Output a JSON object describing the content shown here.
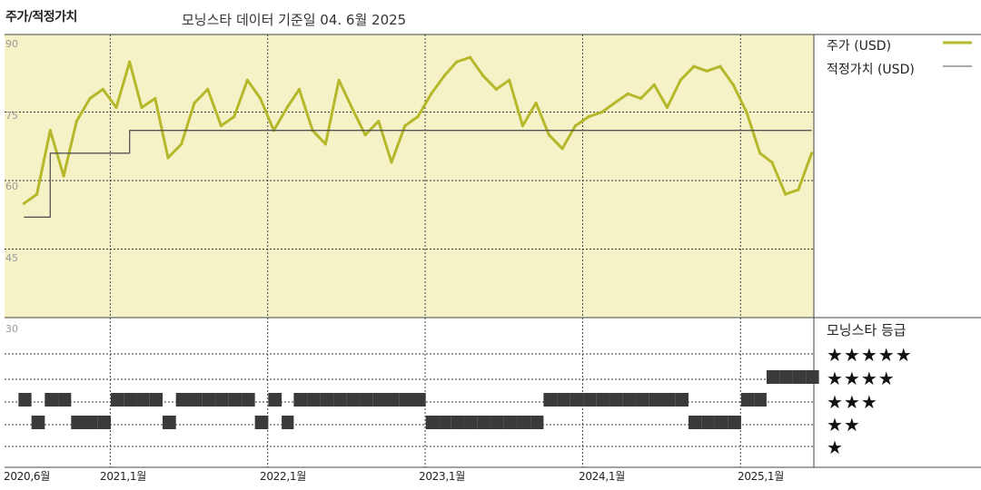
{
  "chart_data": {
    "type": "line",
    "title": "주가/적정가치",
    "subtitle": "모닝스타 데이터 기준일 04. 6월 2025",
    "x_ticks": [
      "2020,6월",
      "2021,1월",
      "2022,1월",
      "2023,1월",
      "2024,1월",
      "2025,1월"
    ],
    "y_ticks": [
      "90",
      "75",
      "60",
      "45",
      "30"
    ],
    "ylim": [
      30,
      92
    ],
    "grid": true,
    "legend_position": "right",
    "series": [
      {
        "name": "주가 (USD)",
        "color": "#b5b82a",
        "x": [
          "2020-06",
          "2020-07",
          "2020-08",
          "2020-09",
          "2020-10",
          "2020-11",
          "2020-12",
          "2021-01",
          "2021-02",
          "2021-03",
          "2021-04",
          "2021-05",
          "2021-06",
          "2021-07",
          "2021-08",
          "2021-09",
          "2021-10",
          "2021-11",
          "2021-12",
          "2022-01",
          "2022-02",
          "2022-03",
          "2022-04",
          "2022-05",
          "2022-06",
          "2022-07",
          "2022-08",
          "2022-09",
          "2022-10",
          "2022-11",
          "2022-12",
          "2023-01",
          "2023-02",
          "2023-03",
          "2023-04",
          "2023-05",
          "2023-06",
          "2023-07",
          "2023-08",
          "2023-09",
          "2023-10",
          "2023-11",
          "2023-12",
          "2024-01",
          "2024-02",
          "2024-03",
          "2024-04",
          "2024-05",
          "2024-06",
          "2024-07",
          "2024-08",
          "2024-09",
          "2024-10",
          "2024-11",
          "2024-12",
          "2025-01",
          "2025-02",
          "2025-03",
          "2025-04",
          "2025-05",
          "2025-06"
        ],
        "values": [
          55,
          57,
          71,
          61,
          73,
          78,
          80,
          76,
          86,
          76,
          78,
          65,
          68,
          77,
          80,
          72,
          74,
          82,
          78,
          71,
          76,
          80,
          71,
          68,
          82,
          76,
          70,
          73,
          64,
          72,
          74,
          79,
          83,
          86,
          87,
          83,
          80,
          82,
          72,
          77,
          70,
          67,
          72,
          74,
          75,
          77,
          79,
          78,
          81,
          76,
          82,
          85,
          84,
          85,
          81,
          75,
          66,
          64,
          57,
          58,
          66
        ]
      },
      {
        "name": "적정가치 (USD)",
        "color": "#555555",
        "x": [
          "2020-06",
          "2020-07",
          "2020-08",
          "2021-01",
          "2021-02",
          "2025-06"
        ],
        "values": [
          52,
          52,
          66,
          66,
          71,
          71
        ]
      }
    ],
    "rating_title": "모닝스타 등급",
    "rating_labels": [
      "★★★★★",
      "★★★★",
      "★★★",
      "★★",
      "★"
    ],
    "ratings": [
      3,
      2,
      3,
      3,
      2,
      2,
      2,
      3,
      3,
      3,
      3,
      2,
      3,
      3,
      3,
      3,
      3,
      3,
      2,
      3,
      2,
      3,
      3,
      3,
      3,
      3,
      3,
      3,
      3,
      3,
      3,
      2,
      2,
      2,
      2,
      2,
      2,
      2,
      2,
      2,
      3,
      3,
      3,
      3,
      3,
      3,
      3,
      3,
      3,
      3,
      3,
      2,
      2,
      2,
      2,
      3,
      3,
      4,
      4,
      4,
      4
    ]
  }
}
